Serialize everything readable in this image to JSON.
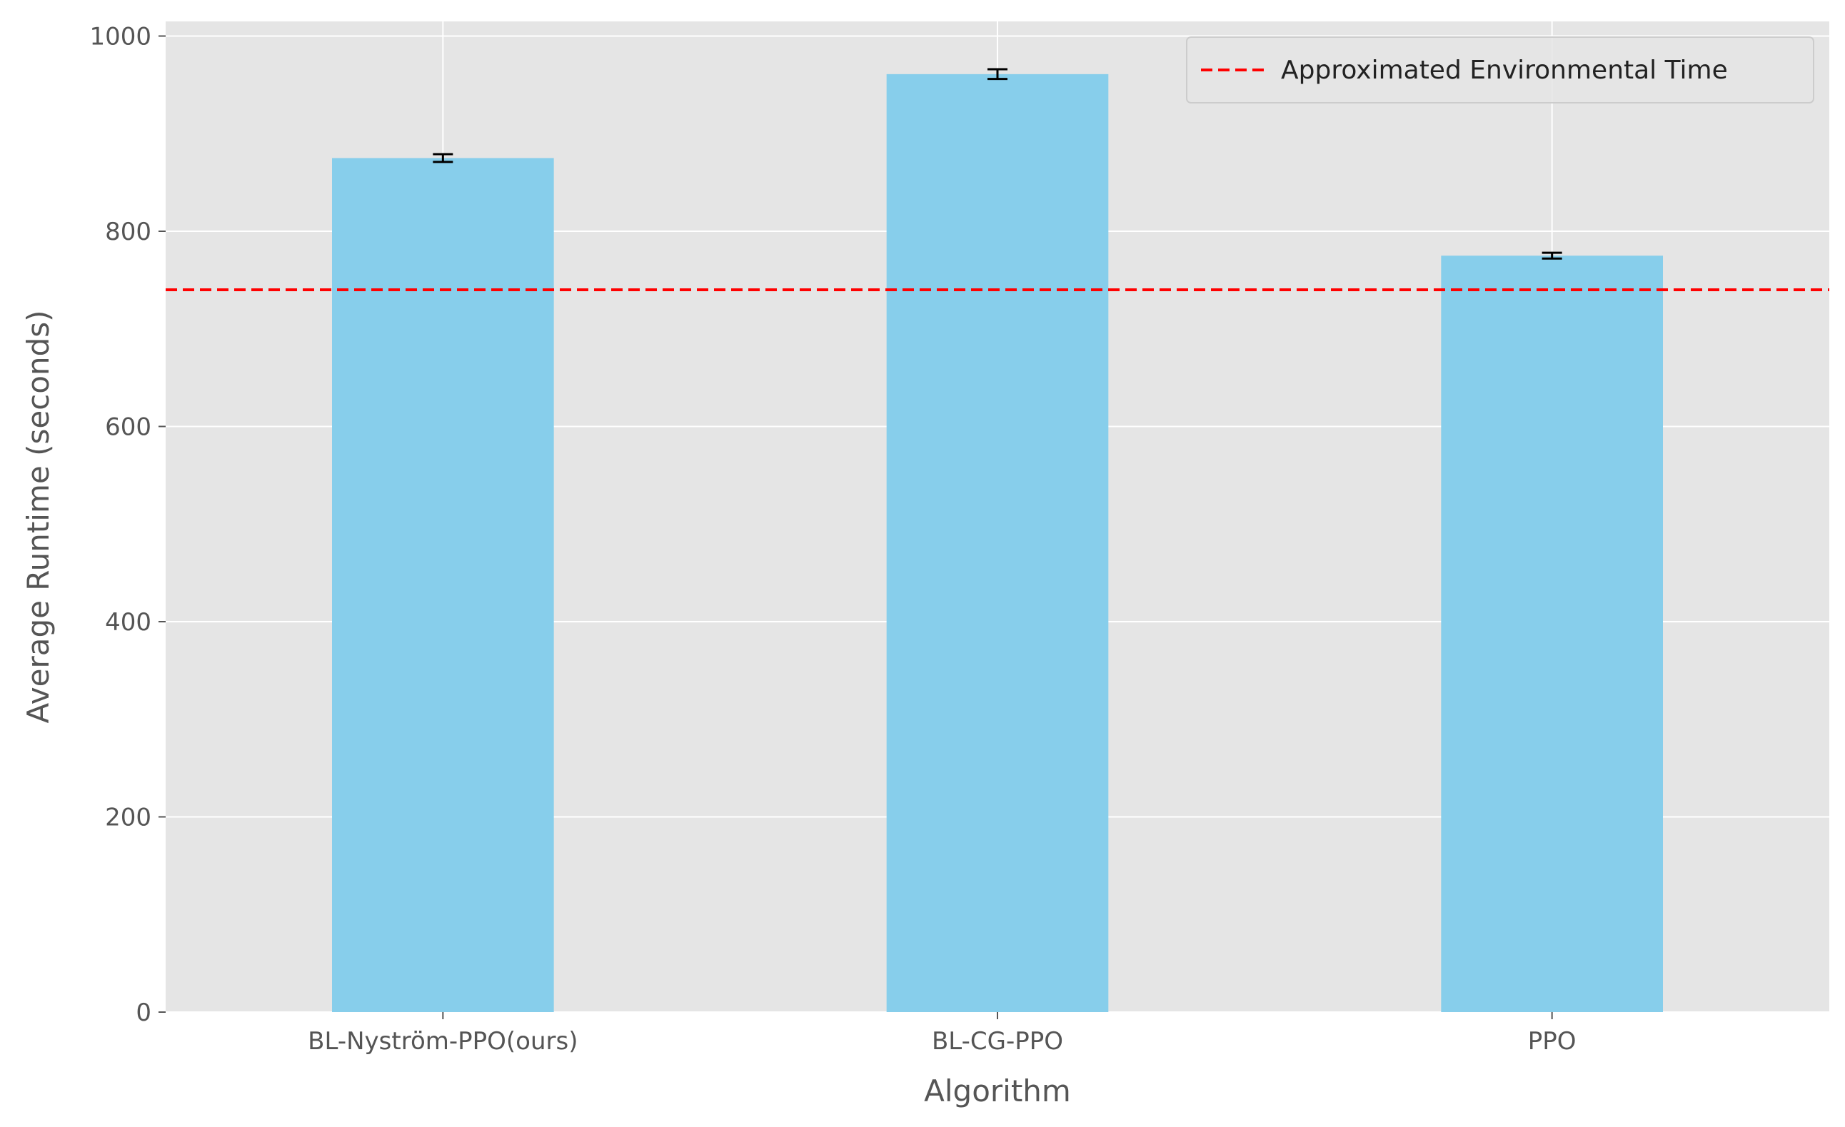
{
  "chart_data": {
    "type": "bar",
    "title": "",
    "xlabel": "Algorithm",
    "ylabel": "Average Runtime (seconds)",
    "categories": [
      "BL-Nyström-PPO(ours)",
      "BL-CG-PPO",
      "PPO"
    ],
    "values": [
      875,
      961,
      775
    ],
    "errors": [
      4,
      5,
      3
    ],
    "ylim": [
      0,
      1015
    ],
    "yticks": [
      0,
      200,
      400,
      600,
      800,
      1000
    ],
    "reference_line": {
      "label": "Approximated Environmental Time",
      "value": 740,
      "color": "#ff0000",
      "style": "dashed"
    },
    "bar_color": "#87ceeb",
    "background_color": "#e5e5e5",
    "grid": true,
    "legend_position": "top-right"
  }
}
